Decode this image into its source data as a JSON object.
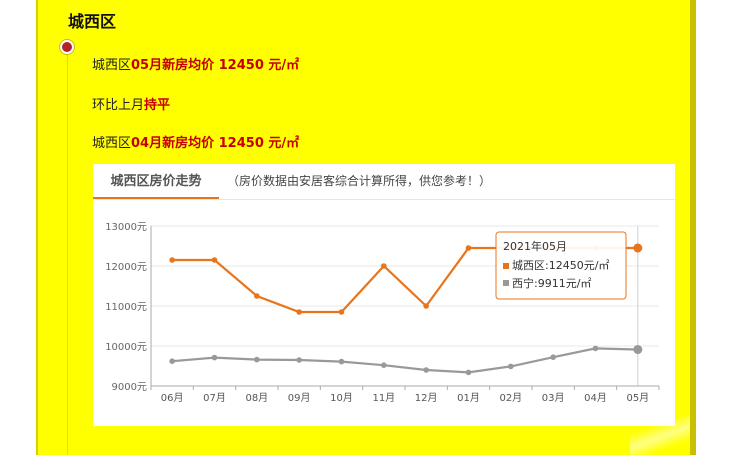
{
  "section": {
    "title": "城西区"
  },
  "info": {
    "row1": {
      "prefix": "城西区",
      "highlight": "05月新房均价 12450 元/㎡"
    },
    "row2": {
      "prefix": "环比上月",
      "highlight": "持平"
    },
    "row3": {
      "prefix": "城西区",
      "highlight": "04月新房均价 12450 元/㎡"
    }
  },
  "chart_header": {
    "tab_label": "城西区房价走势",
    "note": "（房价数据由安居客综合计算所得，供您参考！）"
  },
  "tooltip": {
    "title": "2021年05月",
    "series1_line": "城西区:12450元/㎡",
    "series2_line": "西宁:9911元/㎡"
  },
  "colors": {
    "page_bg": "#ffff00",
    "series1": "#e8741c",
    "series2": "#999999",
    "marker": "#b81f2c"
  },
  "chart_data": {
    "type": "line",
    "categories": [
      "06月",
      "07月",
      "08月",
      "09月",
      "10月",
      "11月",
      "12月",
      "01月",
      "02月",
      "03月",
      "04月",
      "05月"
    ],
    "series": [
      {
        "name": "城西区",
        "values": [
          12150,
          12150,
          11250,
          10850,
          10850,
          12000,
          11000,
          12450,
          12450,
          12450,
          12450,
          12450
        ]
      },
      {
        "name": "西宁",
        "values": [
          9620,
          9710,
          9660,
          9650,
          9610,
          9520,
          9400,
          9340,
          9490,
          9720,
          9940,
          9911
        ]
      }
    ],
    "y_ticks": [
      "9000元",
      "10000元",
      "11000元",
      "12000元",
      "13000元"
    ],
    "ylim": [
      9000,
      13000
    ],
    "grid": true,
    "legend": "none",
    "highlight_index": 11
  }
}
